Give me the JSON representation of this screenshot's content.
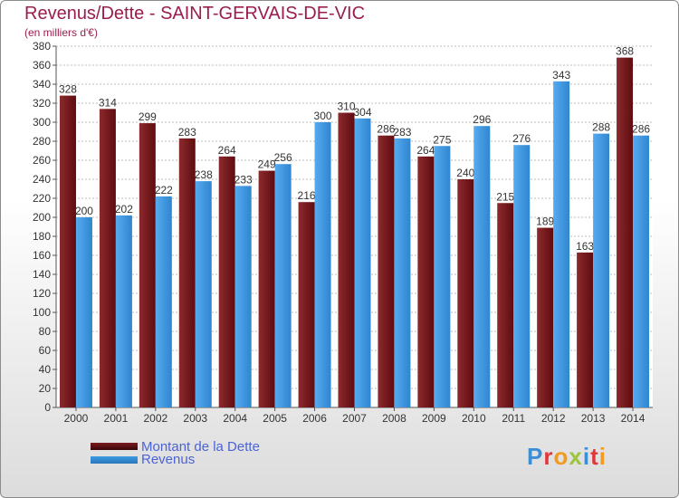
{
  "title": "Revenus/Dette - SAINT-GERVAIS-DE-VIC",
  "subtitle": "(en milliers d'€)",
  "logo": {
    "text": "Proxiti",
    "letters": [
      {
        "ch": "P",
        "color": "#3c8fd6"
      },
      {
        "ch": "r",
        "color": "#e2363b"
      },
      {
        "ch": "o",
        "color": "#f29a1f"
      },
      {
        "ch": "x",
        "color": "#9bc53d"
      },
      {
        "ch": "i",
        "color": "#3c8fd6"
      },
      {
        "ch": "t",
        "color": "#e2363b"
      },
      {
        "ch": "i",
        "color": "#f29a1f"
      }
    ]
  },
  "chart_data": {
    "type": "bar",
    "categories": [
      "2000",
      "2001",
      "2002",
      "2003",
      "2004",
      "2005",
      "2006",
      "2007",
      "2008",
      "2009",
      "2010",
      "2011",
      "2012",
      "2013",
      "2014"
    ],
    "series": [
      {
        "name": "Montant de la Dette",
        "color": "#7a1a1e",
        "values": [
          328,
          314,
          299,
          283,
          264,
          249,
          216,
          310,
          286,
          264,
          240,
          215,
          189,
          163,
          368
        ]
      },
      {
        "name": "Revenus",
        "color": "#3d9ae0",
        "values": [
          200,
          202,
          222,
          238,
          233,
          256,
          300,
          304,
          283,
          275,
          296,
          276,
          343,
          288,
          286
        ]
      }
    ],
    "ylim": [
      0,
      380
    ],
    "ytick_step": 20,
    "grid": true,
    "legend": "bottom-left"
  }
}
